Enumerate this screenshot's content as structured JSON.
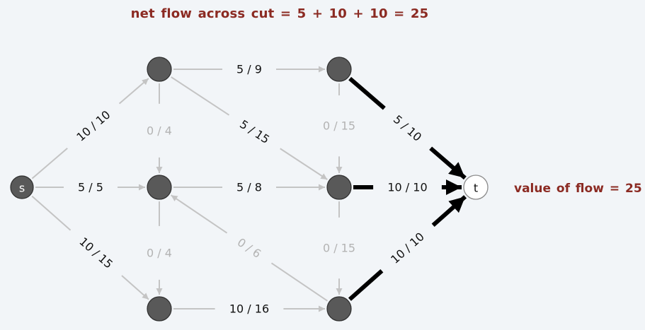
{
  "captions": {
    "cut": "net flow across cut  =  5 + 10 + 10 =  25",
    "value": "value of flow  =  25"
  },
  "colors": {
    "caption": "#8b2a22",
    "cut_edge": "#000000",
    "regular_edge": "#c4c4c4",
    "regular_label": "#111111",
    "zero_flow_label": "#b3b3b3",
    "node_fill": "#595959",
    "sink_fill": "#ffffff",
    "background": "#f2f5f8"
  },
  "nodes": [
    {
      "id": "s",
      "label": "s"
    },
    {
      "id": "a",
      "label": ""
    },
    {
      "id": "b",
      "label": ""
    },
    {
      "id": "c",
      "label": ""
    },
    {
      "id": "d",
      "label": ""
    },
    {
      "id": "e",
      "label": ""
    },
    {
      "id": "f",
      "label": ""
    },
    {
      "id": "t",
      "label": "t"
    }
  ],
  "edges": [
    {
      "from": "s",
      "to": "a",
      "label": "10 / 10",
      "style": "regular"
    },
    {
      "from": "s",
      "to": "b",
      "label": "5 / 5",
      "style": "regular"
    },
    {
      "from": "s",
      "to": "c",
      "label": "10 / 15",
      "style": "regular"
    },
    {
      "from": "a",
      "to": "d",
      "label": "5 / 9",
      "style": "regular"
    },
    {
      "from": "a",
      "to": "b",
      "label": "0 / 4",
      "style": "zero"
    },
    {
      "from": "a",
      "to": "e",
      "label": "5 / 15",
      "style": "regular"
    },
    {
      "from": "b",
      "to": "e",
      "label": "5 / 8",
      "style": "regular"
    },
    {
      "from": "b",
      "to": "c",
      "label": "0 / 4",
      "style": "zero"
    },
    {
      "from": "c",
      "to": "f",
      "label": "10 / 16",
      "style": "regular"
    },
    {
      "from": "f",
      "to": "b",
      "label": "0 / 6",
      "style": "zero"
    },
    {
      "from": "d",
      "to": "e",
      "label": "0 / 15",
      "style": "zero"
    },
    {
      "from": "e",
      "to": "f",
      "label": "0 / 15",
      "style": "zero"
    },
    {
      "from": "d",
      "to": "t",
      "label": "5 / 10",
      "style": "cut"
    },
    {
      "from": "e",
      "to": "t",
      "label": "10 / 10",
      "style": "cut"
    },
    {
      "from": "f",
      "to": "t",
      "label": "10 / 10",
      "style": "cut"
    }
  ]
}
